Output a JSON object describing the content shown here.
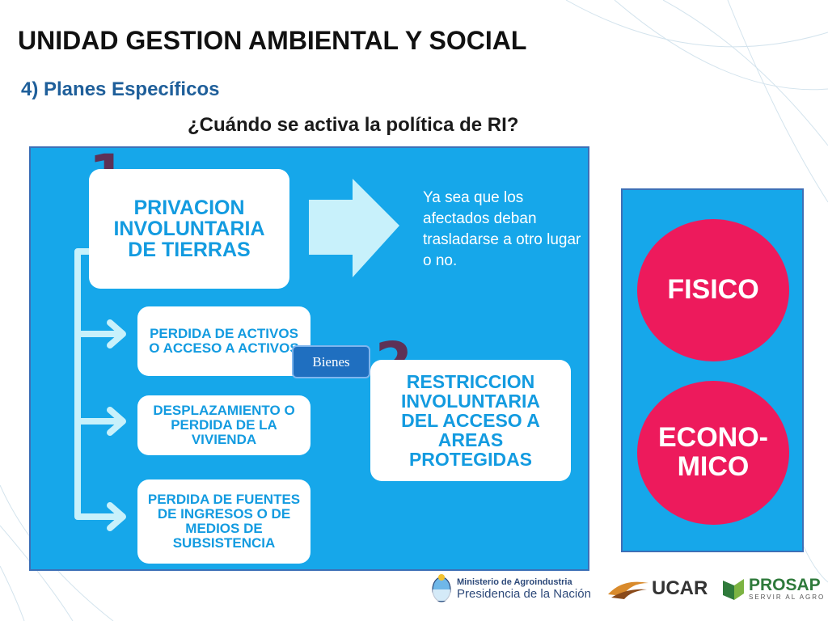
{
  "title": "UNIDAD GESTION AMBIENTAL Y SOCIAL",
  "subtitle": "4) Planes Específicos",
  "question": "¿Cuándo se activa la política de RI?",
  "diagram": {
    "number_1": "1",
    "number_2": "2",
    "box_1": "PRIVACION INVOLUNTARIA DE TIERRAS",
    "box_2": "RESTRICCION INVOLUNTARIA DEL ACCESO A AREAS PROTEGIDAS",
    "note": "Ya sea que los afectados deban trasladarse a otro lugar o no.",
    "sub_1": "PERDIDA DE ACTIVOS O ACCESO A ACTIVOS",
    "sub_2": "DESPLAZAMIENTO O PERDIDA DE LA VIVIENDA",
    "sub_3": "PERDIDA DE FUENTES DE INGRESOS O DE MEDIOS DE SUBSISTENCIA",
    "badge": "Bienes"
  },
  "side": {
    "circle_1": "FISICO",
    "circle_2": "ECONO-MICO"
  },
  "footer": {
    "ministry_line1": "Ministerio de Agroindustria",
    "ministry_line2": "Presidencia de la Nación",
    "ucar": "UCAR",
    "prosap": "PROSAP",
    "prosap_tagline": "SERVIR AL AGRO"
  },
  "colors": {
    "panel_blue": "#16a7ea",
    "text_blue": "#139be0",
    "circle_pink": "#ed1a5c",
    "number_purple": "#5e3156",
    "arrow_light": "#c8f1fb"
  }
}
